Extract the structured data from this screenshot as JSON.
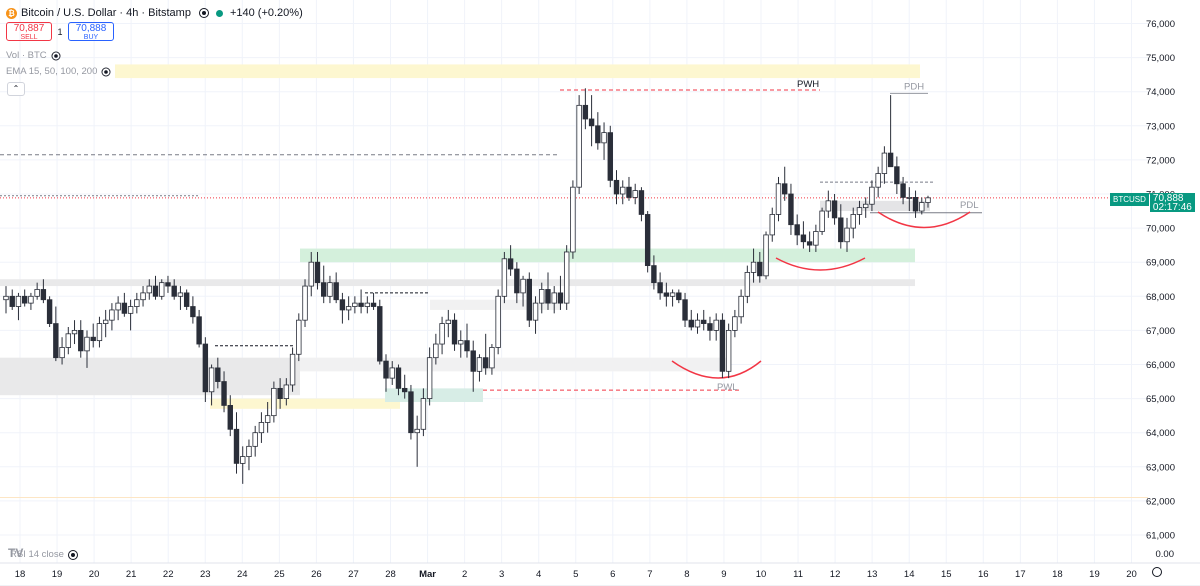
{
  "symbol": {
    "title": "Bitcoin / U.S. Dollar · 4h · Bitstamp",
    "coin_icon": "bitcoin-icon",
    "change": "+140 (+0.20%)",
    "sell_price": "70,887",
    "sell_label": "SELL",
    "spread": "1",
    "buy_price": "70,888",
    "buy_label": "BUY"
  },
  "indicators": {
    "vol": "Vol · BTC",
    "ema": "EMA 15, 50, 100, 200",
    "rsi": "RSI 14 close"
  },
  "price_tag": {
    "symbol": "BTCUSD",
    "price": "70,888",
    "countdown": "02:17:46"
  },
  "colors": {
    "up": "#ffffff",
    "down": "#2a2e39",
    "accent_green": "#089981",
    "level_red": "#f23645",
    "zone_green": "#d4f0dc",
    "zone_grey": "#e9e9ea",
    "zone_yellow": "#fdf7d0"
  },
  "chart_data": {
    "type": "candlestick",
    "yaxis": {
      "ticks": [
        "76,000",
        "75,000",
        "74,000",
        "73,000",
        "72,000",
        "71,000",
        "70,000",
        "69,000",
        "68,000",
        "67,000",
        "66,000",
        "65,000",
        "64,000",
        "63,000",
        "62,000",
        "61,000"
      ],
      "rsi_zero": "0.00"
    },
    "xaxis": {
      "ticks": [
        "18",
        "19",
        "20",
        "21",
        "22",
        "23",
        "24",
        "25",
        "26",
        "27",
        "28",
        "Mar",
        "2",
        "3",
        "4",
        "5",
        "6",
        "7",
        "8",
        "9",
        "10",
        "11",
        "12",
        "13",
        "14",
        "15",
        "16",
        "17",
        "18",
        "19",
        "20"
      ]
    },
    "annotations": [
      {
        "label": "PWH",
        "price": 74050
      },
      {
        "label": "PDH",
        "price": 73950
      },
      {
        "label": "PDL",
        "price": 70450
      },
      {
        "label": "PWL",
        "price": 65250
      }
    ],
    "candles": [
      {
        "o": 67900,
        "h": 68300,
        "l": 67500,
        "c": 68000
      },
      {
        "o": 68000,
        "h": 68200,
        "l": 67600,
        "c": 67700
      },
      {
        "o": 67700,
        "h": 68100,
        "l": 67300,
        "c": 68000
      },
      {
        "o": 68000,
        "h": 68200,
        "l": 67700,
        "c": 67800
      },
      {
        "o": 67800,
        "h": 68100,
        "l": 67600,
        "c": 68000
      },
      {
        "o": 68000,
        "h": 68400,
        "l": 67900,
        "c": 68200
      },
      {
        "o": 68200,
        "h": 68500,
        "l": 67800,
        "c": 67900
      },
      {
        "o": 67900,
        "h": 68000,
        "l": 67100,
        "c": 67200
      },
      {
        "o": 67200,
        "h": 67700,
        "l": 66100,
        "c": 66200
      },
      {
        "o": 66200,
        "h": 66800,
        "l": 66000,
        "c": 66500
      },
      {
        "o": 66500,
        "h": 67100,
        "l": 66300,
        "c": 66900
      },
      {
        "o": 66900,
        "h": 67300,
        "l": 66600,
        "c": 67000
      },
      {
        "o": 67000,
        "h": 67300,
        "l": 66200,
        "c": 66400
      },
      {
        "o": 66400,
        "h": 67000,
        "l": 65900,
        "c": 66800
      },
      {
        "o": 66800,
        "h": 67200,
        "l": 66500,
        "c": 66700
      },
      {
        "o": 66700,
        "h": 67400,
        "l": 66500,
        "c": 67200
      },
      {
        "o": 67200,
        "h": 67600,
        "l": 66800,
        "c": 67300
      },
      {
        "o": 67300,
        "h": 67800,
        "l": 67000,
        "c": 67600
      },
      {
        "o": 67600,
        "h": 68000,
        "l": 67300,
        "c": 67800
      },
      {
        "o": 67800,
        "h": 68100,
        "l": 67400,
        "c": 67500
      },
      {
        "o": 67500,
        "h": 67900,
        "l": 67000,
        "c": 67700
      },
      {
        "o": 67700,
        "h": 68100,
        "l": 67500,
        "c": 67900
      },
      {
        "o": 67900,
        "h": 68300,
        "l": 67700,
        "c": 68100
      },
      {
        "o": 68100,
        "h": 68500,
        "l": 67900,
        "c": 68300
      },
      {
        "o": 68300,
        "h": 68600,
        "l": 67900,
        "c": 68000
      },
      {
        "o": 68000,
        "h": 68500,
        "l": 67900,
        "c": 68400
      },
      {
        "o": 68400,
        "h": 68600,
        "l": 68100,
        "c": 68300
      },
      {
        "o": 68300,
        "h": 68500,
        "l": 67900,
        "c": 68000
      },
      {
        "o": 68000,
        "h": 68300,
        "l": 67600,
        "c": 68100
      },
      {
        "o": 68100,
        "h": 68200,
        "l": 67600,
        "c": 67700
      },
      {
        "o": 67700,
        "h": 68000,
        "l": 67200,
        "c": 67400
      },
      {
        "o": 67400,
        "h": 67600,
        "l": 66500,
        "c": 66600
      },
      {
        "o": 66600,
        "h": 66800,
        "l": 64900,
        "c": 65200
      },
      {
        "o": 65200,
        "h": 66000,
        "l": 64800,
        "c": 65900
      },
      {
        "o": 65900,
        "h": 66200,
        "l": 65300,
        "c": 65500
      },
      {
        "o": 65500,
        "h": 65800,
        "l": 64600,
        "c": 64800
      },
      {
        "o": 64800,
        "h": 65100,
        "l": 63900,
        "c": 64100
      },
      {
        "o": 64100,
        "h": 64600,
        "l": 62800,
        "c": 63100
      },
      {
        "o": 63100,
        "h": 63600,
        "l": 62500,
        "c": 63300
      },
      {
        "o": 63300,
        "h": 63800,
        "l": 62900,
        "c": 63600
      },
      {
        "o": 63600,
        "h": 64200,
        "l": 63300,
        "c": 64000
      },
      {
        "o": 64000,
        "h": 64600,
        "l": 63700,
        "c": 64300
      },
      {
        "o": 64300,
        "h": 64900,
        "l": 64000,
        "c": 64500
      },
      {
        "o": 64500,
        "h": 65500,
        "l": 64300,
        "c": 65300
      },
      {
        "o": 65300,
        "h": 65600,
        "l": 64700,
        "c": 65000
      },
      {
        "o": 65000,
        "h": 65600,
        "l": 64800,
        "c": 65400
      },
      {
        "o": 65400,
        "h": 66500,
        "l": 65200,
        "c": 66300
      },
      {
        "o": 66300,
        "h": 67500,
        "l": 66100,
        "c": 67300
      },
      {
        "o": 67300,
        "h": 68500,
        "l": 67100,
        "c": 68300
      },
      {
        "o": 68300,
        "h": 69300,
        "l": 68000,
        "c": 69000
      },
      {
        "o": 69000,
        "h": 69300,
        "l": 68200,
        "c": 68400
      },
      {
        "o": 68400,
        "h": 68900,
        "l": 67800,
        "c": 68000
      },
      {
        "o": 68000,
        "h": 68600,
        "l": 67800,
        "c": 68400
      },
      {
        "o": 68400,
        "h": 68700,
        "l": 67800,
        "c": 67900
      },
      {
        "o": 67900,
        "h": 68100,
        "l": 67200,
        "c": 67600
      },
      {
        "o": 67600,
        "h": 68000,
        "l": 67300,
        "c": 67700
      },
      {
        "o": 67700,
        "h": 68000,
        "l": 67500,
        "c": 67800
      },
      {
        "o": 67800,
        "h": 68200,
        "l": 67500,
        "c": 67700
      },
      {
        "o": 67700,
        "h": 68000,
        "l": 67500,
        "c": 67800
      },
      {
        "o": 67800,
        "h": 68100,
        "l": 67600,
        "c": 67700
      },
      {
        "o": 67700,
        "h": 67900,
        "l": 66000,
        "c": 66100
      },
      {
        "o": 66100,
        "h": 66300,
        "l": 65200,
        "c": 65600
      },
      {
        "o": 65600,
        "h": 66100,
        "l": 65400,
        "c": 65900
      },
      {
        "o": 65900,
        "h": 66000,
        "l": 65100,
        "c": 65300
      },
      {
        "o": 65300,
        "h": 65700,
        "l": 65000,
        "c": 65200
      },
      {
        "o": 65200,
        "h": 65400,
        "l": 63800,
        "c": 64000
      },
      {
        "o": 64000,
        "h": 64500,
        "l": 63000,
        "c": 64100
      },
      {
        "o": 64100,
        "h": 65300,
        "l": 63900,
        "c": 65000
      },
      {
        "o": 65000,
        "h": 66500,
        "l": 64800,
        "c": 66200
      },
      {
        "o": 66200,
        "h": 66900,
        "l": 66000,
        "c": 66600
      },
      {
        "o": 66600,
        "h": 67400,
        "l": 66300,
        "c": 67200
      },
      {
        "o": 67200,
        "h": 67600,
        "l": 66800,
        "c": 67300
      },
      {
        "o": 67300,
        "h": 67500,
        "l": 66400,
        "c": 66600
      },
      {
        "o": 66600,
        "h": 67000,
        "l": 66200,
        "c": 66700
      },
      {
        "o": 66700,
        "h": 67200,
        "l": 66200,
        "c": 66400
      },
      {
        "o": 66400,
        "h": 66700,
        "l": 65200,
        "c": 65800
      },
      {
        "o": 65800,
        "h": 66300,
        "l": 65500,
        "c": 66200
      },
      {
        "o": 66200,
        "h": 66900,
        "l": 65700,
        "c": 65900
      },
      {
        "o": 65900,
        "h": 66600,
        "l": 65700,
        "c": 66500
      },
      {
        "o": 66500,
        "h": 68200,
        "l": 66300,
        "c": 68000
      },
      {
        "o": 68000,
        "h": 69300,
        "l": 67800,
        "c": 69100
      },
      {
        "o": 69100,
        "h": 69500,
        "l": 68600,
        "c": 68800
      },
      {
        "o": 68800,
        "h": 69000,
        "l": 67800,
        "c": 68100
      },
      {
        "o": 68100,
        "h": 68600,
        "l": 67700,
        "c": 68500
      },
      {
        "o": 68500,
        "h": 68700,
        "l": 67100,
        "c": 67300
      },
      {
        "o": 67300,
        "h": 68000,
        "l": 66900,
        "c": 67800
      },
      {
        "o": 67800,
        "h": 68400,
        "l": 67500,
        "c": 68200
      },
      {
        "o": 68200,
        "h": 68700,
        "l": 67600,
        "c": 67800
      },
      {
        "o": 67800,
        "h": 68300,
        "l": 67500,
        "c": 68100
      },
      {
        "o": 68100,
        "h": 68600,
        "l": 67600,
        "c": 67800
      },
      {
        "o": 67800,
        "h": 69500,
        "l": 67600,
        "c": 69300
      },
      {
        "o": 69300,
        "h": 71400,
        "l": 69100,
        "c": 71200
      },
      {
        "o": 71200,
        "h": 73900,
        "l": 71000,
        "c": 73600
      },
      {
        "o": 73600,
        "h": 74100,
        "l": 72900,
        "c": 73200
      },
      {
        "o": 73200,
        "h": 73900,
        "l": 72400,
        "c": 73000
      },
      {
        "o": 73000,
        "h": 73400,
        "l": 72300,
        "c": 72500
      },
      {
        "o": 72500,
        "h": 73100,
        "l": 72000,
        "c": 72800
      },
      {
        "o": 72800,
        "h": 73000,
        "l": 71200,
        "c": 71400
      },
      {
        "o": 71400,
        "h": 71700,
        "l": 70700,
        "c": 71000
      },
      {
        "o": 71000,
        "h": 71400,
        "l": 70700,
        "c": 71200
      },
      {
        "o": 71200,
        "h": 71500,
        "l": 70800,
        "c": 70900
      },
      {
        "o": 70900,
        "h": 71300,
        "l": 70700,
        "c": 71100
      },
      {
        "o": 71100,
        "h": 71200,
        "l": 70200,
        "c": 70400
      },
      {
        "o": 70400,
        "h": 70500,
        "l": 68700,
        "c": 68900
      },
      {
        "o": 68900,
        "h": 69200,
        "l": 68200,
        "c": 68400
      },
      {
        "o": 68400,
        "h": 68700,
        "l": 67900,
        "c": 68100
      },
      {
        "o": 68100,
        "h": 68400,
        "l": 67700,
        "c": 68000
      },
      {
        "o": 68000,
        "h": 68200,
        "l": 67700,
        "c": 68100
      },
      {
        "o": 68100,
        "h": 68200,
        "l": 67800,
        "c": 67900
      },
      {
        "o": 67900,
        "h": 68100,
        "l": 67100,
        "c": 67300
      },
      {
        "o": 67300,
        "h": 67600,
        "l": 67000,
        "c": 67100
      },
      {
        "o": 67100,
        "h": 67500,
        "l": 66900,
        "c": 67300
      },
      {
        "o": 67300,
        "h": 67600,
        "l": 67000,
        "c": 67200
      },
      {
        "o": 67200,
        "h": 67400,
        "l": 66700,
        "c": 67000
      },
      {
        "o": 67000,
        "h": 67500,
        "l": 66700,
        "c": 67300
      },
      {
        "o": 67300,
        "h": 67500,
        "l": 65600,
        "c": 65800
      },
      {
        "o": 65800,
        "h": 67200,
        "l": 65600,
        "c": 67000
      },
      {
        "o": 67000,
        "h": 67600,
        "l": 66800,
        "c": 67400
      },
      {
        "o": 67400,
        "h": 68200,
        "l": 67200,
        "c": 68000
      },
      {
        "o": 68000,
        "h": 68900,
        "l": 67800,
        "c": 68700
      },
      {
        "o": 68700,
        "h": 69400,
        "l": 68400,
        "c": 69000
      },
      {
        "o": 69000,
        "h": 69300,
        "l": 68400,
        "c": 68600
      },
      {
        "o": 68600,
        "h": 69900,
        "l": 68500,
        "c": 69800
      },
      {
        "o": 69800,
        "h": 70600,
        "l": 69600,
        "c": 70400
      },
      {
        "o": 70400,
        "h": 71500,
        "l": 70200,
        "c": 71300
      },
      {
        "o": 71300,
        "h": 71800,
        "l": 70800,
        "c": 71000
      },
      {
        "o": 71000,
        "h": 71300,
        "l": 69800,
        "c": 70100
      },
      {
        "o": 70100,
        "h": 70400,
        "l": 69500,
        "c": 69800
      },
      {
        "o": 69800,
        "h": 70200,
        "l": 69400,
        "c": 69600
      },
      {
        "o": 69600,
        "h": 69900,
        "l": 69300,
        "c": 69500
      },
      {
        "o": 69500,
        "h": 70100,
        "l": 69300,
        "c": 69900
      },
      {
        "o": 69900,
        "h": 70600,
        "l": 69800,
        "c": 70500
      },
      {
        "o": 70500,
        "h": 71100,
        "l": 70300,
        "c": 70800
      },
      {
        "o": 70800,
        "h": 71000,
        "l": 70100,
        "c": 70300
      },
      {
        "o": 70300,
        "h": 70700,
        "l": 69400,
        "c": 69600
      },
      {
        "o": 69600,
        "h": 70300,
        "l": 69300,
        "c": 70000
      },
      {
        "o": 70000,
        "h": 70600,
        "l": 69700,
        "c": 70400
      },
      {
        "o": 70400,
        "h": 70800,
        "l": 70100,
        "c": 70600
      },
      {
        "o": 70600,
        "h": 70900,
        "l": 70300,
        "c": 70700
      },
      {
        "o": 70700,
        "h": 71400,
        "l": 70500,
        "c": 71200
      },
      {
        "o": 71200,
        "h": 71800,
        "l": 70900,
        "c": 71600
      },
      {
        "o": 71600,
        "h": 72400,
        "l": 71300,
        "c": 72200
      },
      {
        "o": 72200,
        "h": 73900,
        "l": 71800,
        "c": 71800
      },
      {
        "o": 71800,
        "h": 72100,
        "l": 71000,
        "c": 71300
      },
      {
        "o": 71300,
        "h": 71500,
        "l": 70700,
        "c": 70900
      },
      {
        "o": 70900,
        "h": 71200,
        "l": 70500,
        "c": 70900
      },
      {
        "o": 70900,
        "h": 71100,
        "l": 70300,
        "c": 70500
      },
      {
        "o": 70500,
        "h": 70900,
        "l": 70400,
        "c": 70750
      },
      {
        "o": 70750,
        "h": 70950,
        "l": 70600,
        "c": 70888
      }
    ]
  }
}
